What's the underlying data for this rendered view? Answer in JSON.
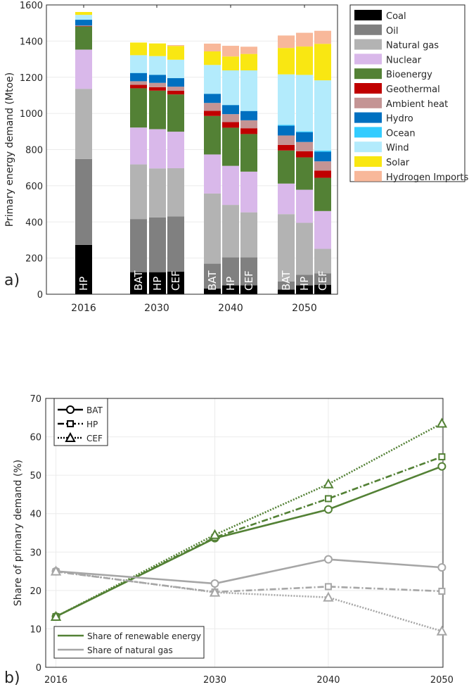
{
  "chart_data": [
    {
      "type": "bar",
      "stacked": true,
      "panel_label": "a)",
      "ylabel": "Primary energy demand (Mtoe)",
      "ylim": [
        0,
        1600
      ],
      "yticks": [
        0,
        200,
        400,
        600,
        800,
        1000,
        1200,
        1400,
        1600
      ],
      "grid": true,
      "legend_position": "outside-right",
      "year_labels": [
        "2016",
        "2030",
        "2040",
        "2050"
      ],
      "sources": [
        {
          "name": "Coal",
          "color": "#000000"
        },
        {
          "name": "Oil",
          "color": "#808080"
        },
        {
          "name": "Natural gas",
          "color": "#b3b3b3"
        },
        {
          "name": "Nuclear",
          "color": "#d9b8ea"
        },
        {
          "name": "Bioenergy",
          "color": "#538135"
        },
        {
          "name": "Geothermal",
          "color": "#c00000"
        },
        {
          "name": "Ambient heat",
          "color": "#c49494"
        },
        {
          "name": "Hydro",
          "color": "#0070c0"
        },
        {
          "name": "Ocean",
          "color": "#33ccff"
        },
        {
          "name": "Wind",
          "color": "#b3ebfc"
        },
        {
          "name": "Solar",
          "color": "#f9e712"
        },
        {
          "name": "Hydrogen Imports",
          "color": "#f8b89a"
        }
      ],
      "bars": [
        {
          "year": "2016",
          "scenario": "HP",
          "values": [
            273,
            475,
            388,
            217,
            128,
            2,
            3,
            32,
            1,
            26,
            16,
            0
          ]
        },
        {
          "year": "2030",
          "scenario": "BAT",
          "values": [
            122,
            294,
            302,
            204,
            217,
            19,
            20,
            45,
            2,
            97,
            70,
            0
          ]
        },
        {
          "year": "2030",
          "scenario": "HP",
          "values": [
            122,
            303,
            271,
            217,
            213,
            19,
            24,
            44,
            1,
            103,
            70,
            0
          ]
        },
        {
          "year": "2030",
          "scenario": "CEF",
          "values": [
            125,
            305,
            267,
            202,
            206,
            20,
            23,
            47,
            1,
            101,
            76,
            5
          ]
        },
        {
          "year": "2040",
          "scenario": "BAT",
          "values": [
            31,
            138,
            388,
            216,
            213,
            28,
            44,
            50,
            1,
            159,
            75,
            43
          ]
        },
        {
          "year": "2040",
          "scenario": "HP",
          "values": [
            49,
            155,
            290,
            216,
            211,
            31,
            44,
            50,
            1,
            191,
            77,
            59
          ]
        },
        {
          "year": "2040",
          "scenario": "CEF",
          "values": [
            49,
            155,
            249,
            225,
            208,
            32,
            44,
            51,
            1,
            224,
            91,
            40
          ]
        },
        {
          "year": "2050",
          "scenario": "BAT",
          "values": [
            26,
            45,
            372,
            169,
            183,
            31,
            52,
            54,
            5,
            279,
            146,
            69
          ]
        },
        {
          "year": "2050",
          "scenario": "HP",
          "values": [
            49,
            59,
            287,
            183,
            179,
            34,
            51,
            54,
            5,
            312,
            157,
            76
          ]
        },
        {
          "year": "2050",
          "scenario": "CEF",
          "values": [
            52,
            64,
            135,
            209,
            184,
            40,
            51,
            53,
            6,
            389,
            202,
            72
          ]
        }
      ]
    },
    {
      "type": "line",
      "panel_label": "b)",
      "ylabel": "Share of primary demand (%)",
      "ylim": [
        0,
        70
      ],
      "yticks": [
        0,
        10,
        20,
        30,
        40,
        50,
        60,
        70
      ],
      "xlim": [
        2015.1,
        2050.1
      ],
      "x": [
        2016,
        2030,
        2040,
        2050
      ],
      "grid": true,
      "scenario_legend": [
        {
          "name": "BAT",
          "marker": "circle",
          "dash": "solid"
        },
        {
          "name": "HP",
          "marker": "square",
          "dash": "dashdot"
        },
        {
          "name": "CEF",
          "marker": "triangle",
          "dash": "dotted"
        }
      ],
      "metric_legend": [
        {
          "name": "Share of renewable energy",
          "color": "#538135"
        },
        {
          "name": "Share of natural gas",
          "color": "#a6a6a6"
        }
      ],
      "series": [
        {
          "metric": "renewable",
          "scenario": "BAT",
          "values": [
            13.2,
            33.6,
            41.1,
            52.3
          ]
        },
        {
          "metric": "renewable",
          "scenario": "HP",
          "values": [
            13.2,
            33.8,
            43.9,
            54.8
          ]
        },
        {
          "metric": "renewable",
          "scenario": "CEF",
          "values": [
            13.2,
            34.5,
            47.7,
            63.5
          ]
        },
        {
          "metric": "gas",
          "scenario": "BAT",
          "values": [
            25.0,
            21.8,
            28.1,
            26.0
          ]
        },
        {
          "metric": "gas",
          "scenario": "HP",
          "values": [
            24.9,
            19.6,
            21.0,
            19.8
          ]
        },
        {
          "metric": "gas",
          "scenario": "CEF",
          "values": [
            25.0,
            19.5,
            18.2,
            9.4
          ]
        }
      ]
    }
  ]
}
